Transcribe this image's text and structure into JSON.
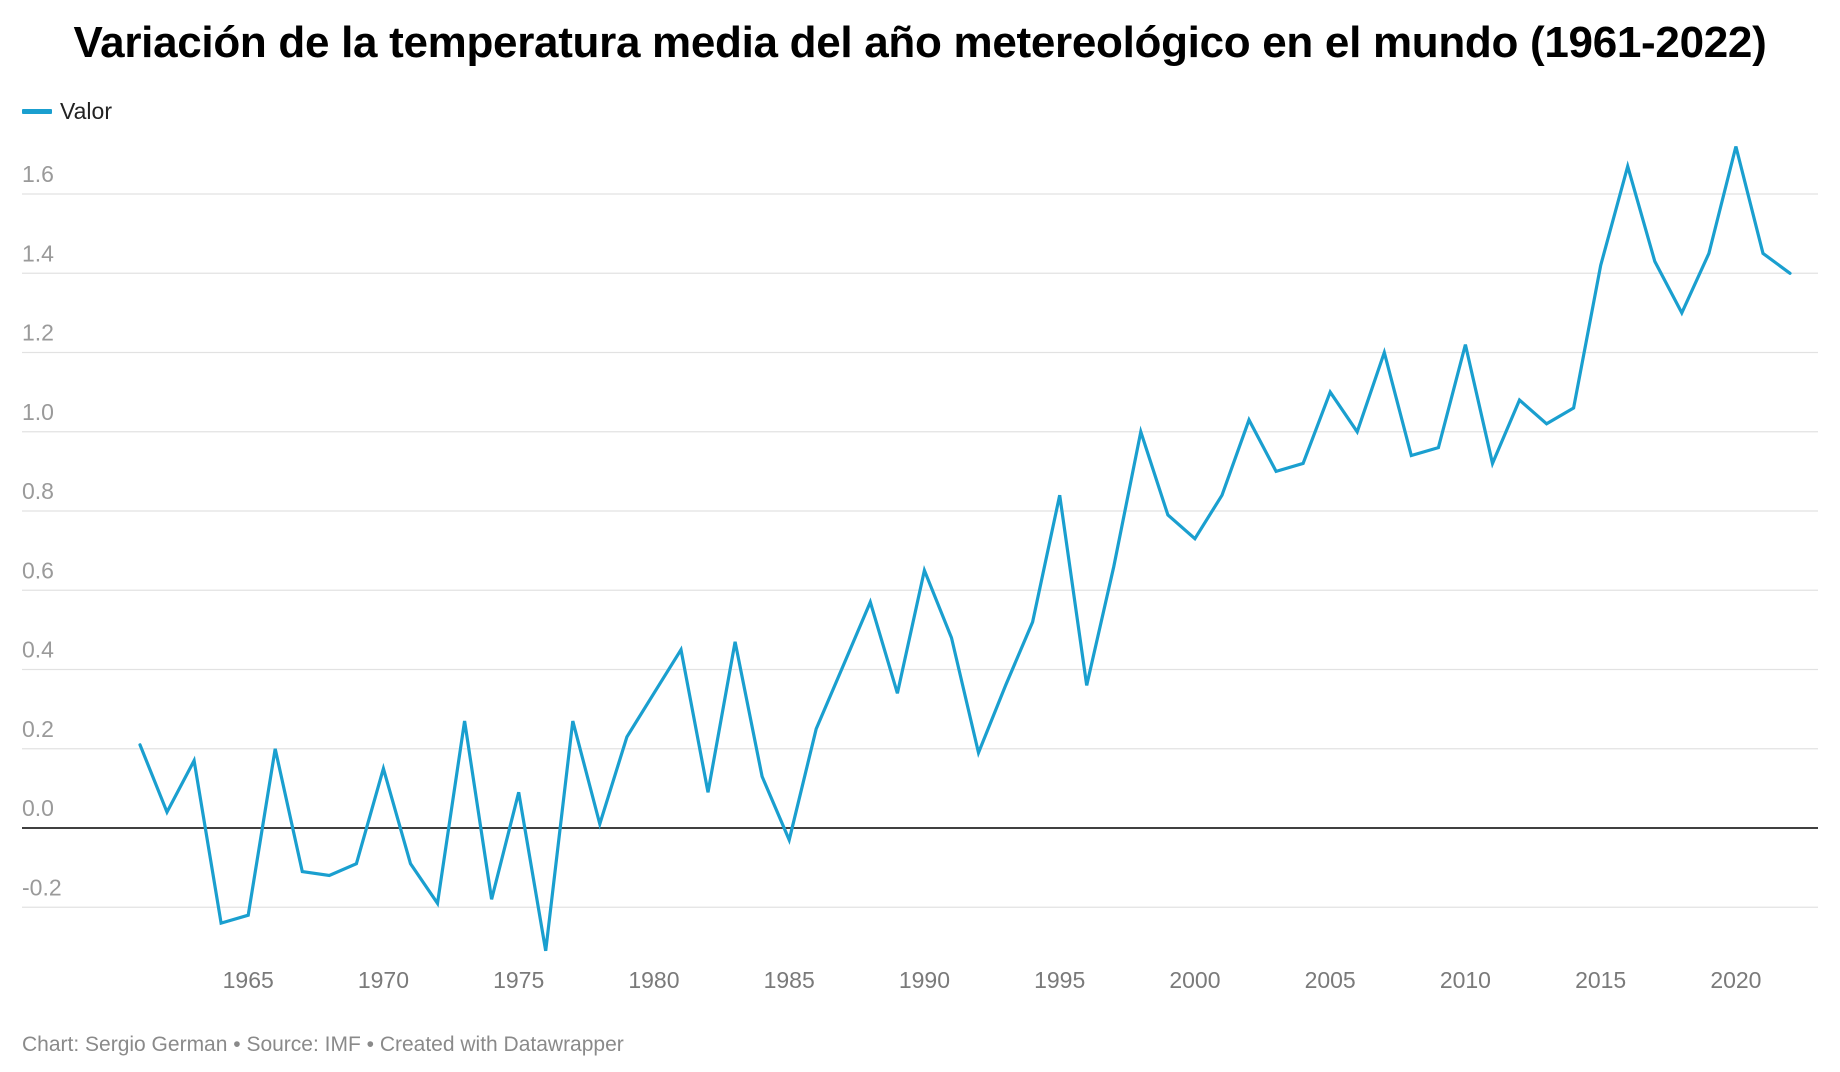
{
  "title": "Variación de la temperatura media del año metereológico en el mundo (1961-2022)",
  "footer": "Chart: Sergio German • Source: IMF • Created with Datawrapper",
  "colors": {
    "line": "#1a9fcf",
    "grid": "#e2e2e2",
    "zero": "#000000",
    "tick": "#9a9a9a",
    "xtick": "#7a7a7a"
  },
  "chart_data": {
    "type": "line",
    "title": "Variación de la temperatura media del año metereológico en el mundo (1961-2022)",
    "xlabel": "",
    "ylabel": "",
    "legend": "top-left",
    "grid": true,
    "xlim": [
      1961,
      2022
    ],
    "ylim": [
      -0.3,
      1.7
    ],
    "y_ticks": [
      -0.2,
      0.0,
      0.2,
      0.4,
      0.6,
      0.8,
      1.0,
      1.2,
      1.4,
      1.6
    ],
    "y_tick_labels": [
      "-0.2",
      "0.0",
      "0.2",
      "0.4",
      "0.6",
      "0.8",
      "1.0",
      "1.2",
      "1.4",
      "1.6"
    ],
    "x_ticks": [
      1965,
      1970,
      1975,
      1980,
      1985,
      1990,
      1995,
      2000,
      2005,
      2010,
      2015,
      2020
    ],
    "x_tick_labels": [
      "1965",
      "1970",
      "1975",
      "1980",
      "1985",
      "1990",
      "1995",
      "2000",
      "2005",
      "2010",
      "2015",
      "2020"
    ],
    "x": [
      1961,
      1962,
      1963,
      1964,
      1965,
      1966,
      1967,
      1968,
      1969,
      1970,
      1971,
      1972,
      1973,
      1974,
      1975,
      1976,
      1977,
      1978,
      1979,
      1980,
      1981,
      1982,
      1983,
      1984,
      1985,
      1986,
      1987,
      1988,
      1989,
      1990,
      1991,
      1992,
      1993,
      1994,
      1995,
      1996,
      1997,
      1998,
      1999,
      2000,
      2001,
      2002,
      2003,
      2004,
      2005,
      2006,
      2007,
      2008,
      2009,
      2010,
      2011,
      2012,
      2013,
      2014,
      2015,
      2016,
      2017,
      2018,
      2019,
      2020,
      2021,
      2022
    ],
    "series": [
      {
        "name": "Valor",
        "values": [
          0.21,
          0.04,
          0.17,
          -0.24,
          -0.22,
          0.2,
          -0.11,
          -0.12,
          -0.09,
          0.15,
          -0.09,
          -0.19,
          0.27,
          -0.18,
          0.09,
          -0.31,
          0.27,
          0.01,
          0.23,
          0.34,
          0.45,
          0.09,
          0.47,
          0.13,
          -0.03,
          0.25,
          0.41,
          0.57,
          0.34,
          0.65,
          0.48,
          0.19,
          0.36,
          0.52,
          0.84,
          0.36,
          0.66,
          1.0,
          0.79,
          0.73,
          0.84,
          1.03,
          0.9,
          0.92,
          1.1,
          1.0,
          1.2,
          0.94,
          0.96,
          1.22,
          0.92,
          1.08,
          1.02,
          1.06,
          1.42,
          1.67,
          1.43,
          1.3,
          1.45,
          1.72,
          1.45,
          1.4
        ]
      }
    ]
  }
}
